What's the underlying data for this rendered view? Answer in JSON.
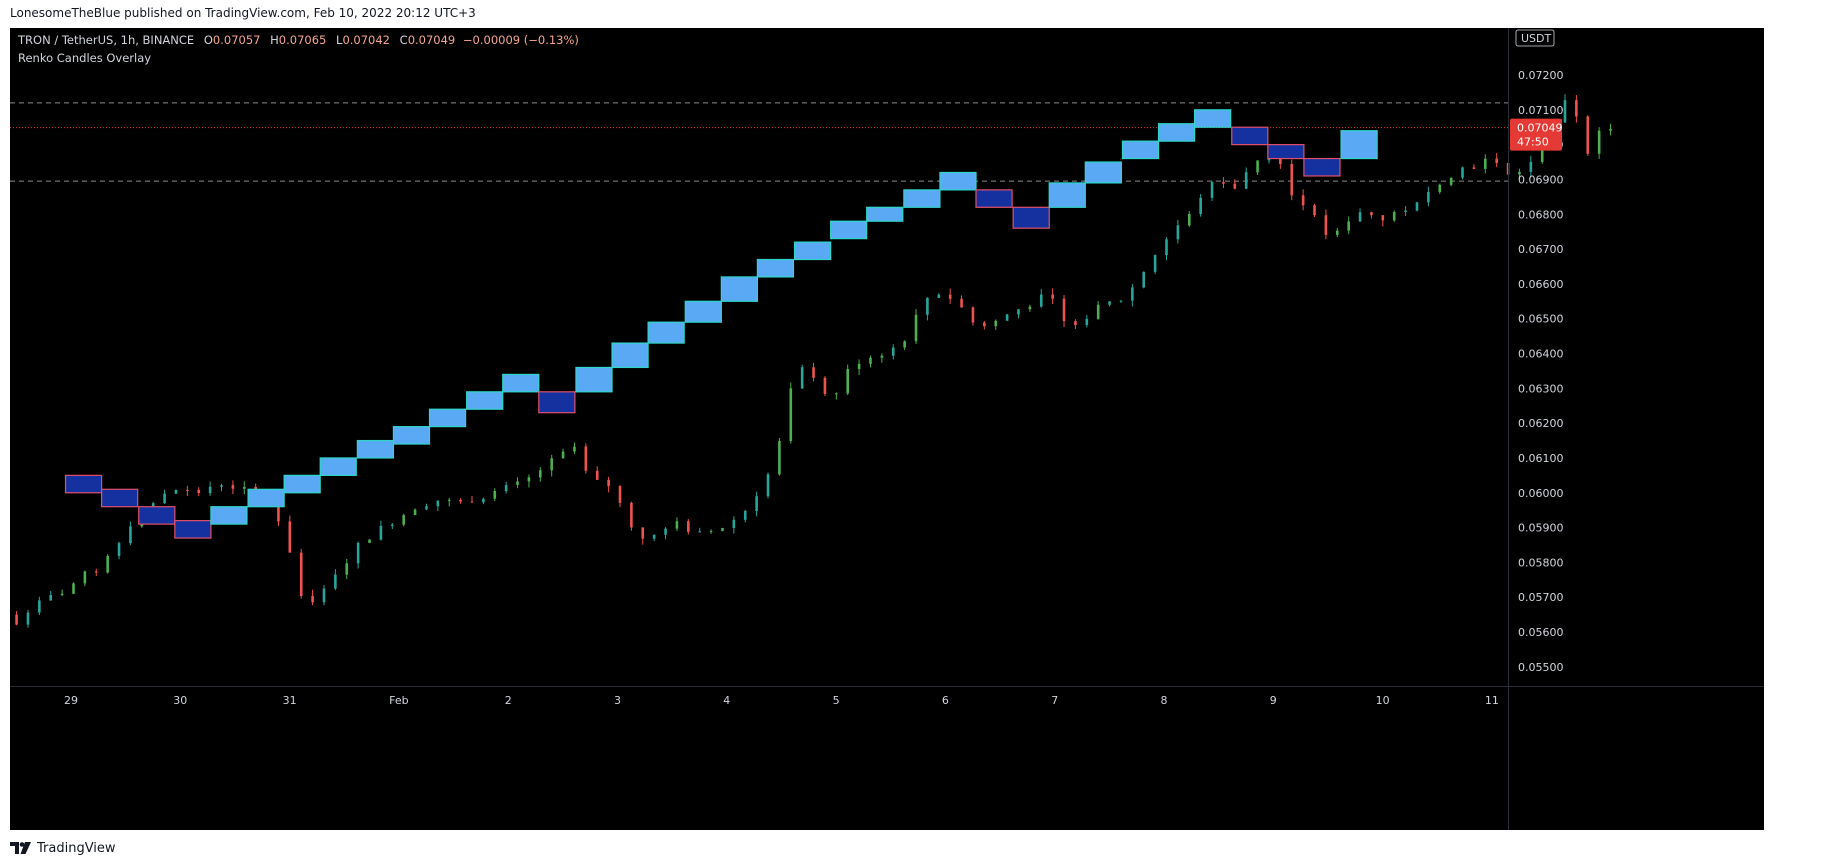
{
  "header": {
    "author": "LonesomeTheBlue",
    "published_text": "published on TradingView.com, Feb 10, 2022 20:12 UTC+3"
  },
  "legend": {
    "symbol": "TRON / TetherUS, 1h, BINANCE",
    "open_label": "O",
    "open": "0.07057",
    "high_label": "H",
    "high": "0.07065",
    "low_label": "L",
    "low": "0.07042",
    "close_label": "C",
    "close": "0.07049",
    "change": "−0.00009 (−0.13%)",
    "indicator": "Renko Candles Overlay"
  },
  "footer": {
    "brand": "TradingView"
  },
  "colors": {
    "background": "#000000",
    "candle_up": "#26a69a",
    "candle_up_alt": "#4caf50",
    "candle_down": "#ef5350",
    "renko_up_fill": "#5aa9f5",
    "renko_up_border": "#2fd6c8",
    "renko_down_fill": "#14319f",
    "renko_down_border": "#e0506a",
    "price_line": "#e53935",
    "grid_dash": "#8a8a8a"
  },
  "chart_data": {
    "type": "candlestick+renko",
    "currency": "USDT",
    "y_range": [
      0.05445,
      0.07335
    ],
    "y_ticks": [
      "0.05500",
      "0.05600",
      "0.05700",
      "0.05800",
      "0.05900",
      "0.06000",
      "0.06100",
      "0.06200",
      "0.06300",
      "0.06400",
      "0.06500",
      "0.06600",
      "0.06700",
      "0.06800",
      "0.06900",
      "0.07000",
      "0.07100",
      "0.07200"
    ],
    "x_ticks": [
      {
        "label": "29",
        "day": 0
      },
      {
        "label": "30",
        "day": 1
      },
      {
        "label": "31",
        "day": 2
      },
      {
        "label": "Feb",
        "day": 3
      },
      {
        "label": "2",
        "day": 4
      },
      {
        "label": "3",
        "day": 5
      },
      {
        "label": "4",
        "day": 6
      },
      {
        "label": "5",
        "day": 7
      },
      {
        "label": "6",
        "day": 8
      },
      {
        "label": "7",
        "day": 9
      },
      {
        "label": "8",
        "day": 10
      },
      {
        "label": "9",
        "day": 11
      },
      {
        "label": "10",
        "day": 12
      },
      {
        "label": "11",
        "day": 13
      }
    ],
    "last_price": "0.07049",
    "countdown": "47:50",
    "price_path": [
      [
        -0.55,
        0.0565
      ],
      [
        -0.45,
        0.0562
      ],
      [
        -0.35,
        0.0566
      ],
      [
        -0.2,
        0.0569
      ],
      [
        0,
        0.0572
      ],
      [
        0.15,
        0.0576
      ],
      [
        0.3,
        0.0578
      ],
      [
        0.5,
        0.0586
      ],
      [
        0.65,
        0.0594
      ],
      [
        0.8,
        0.0597
      ],
      [
        1.0,
        0.0601
      ],
      [
        1.2,
        0.06
      ],
      [
        1.4,
        0.0603
      ],
      [
        1.6,
        0.0601
      ],
      [
        1.8,
        0.0599
      ],
      [
        1.95,
        0.0592
      ],
      [
        2.05,
        0.0584
      ],
      [
        2.13,
        0.0571
      ],
      [
        2.3,
        0.0569
      ],
      [
        2.5,
        0.0577
      ],
      [
        2.65,
        0.0584
      ],
      [
        2.8,
        0.0588
      ],
      [
        3.0,
        0.0592
      ],
      [
        3.2,
        0.0596
      ],
      [
        3.4,
        0.0598
      ],
      [
        3.6,
        0.0597
      ],
      [
        3.8,
        0.0599
      ],
      [
        4.0,
        0.0601
      ],
      [
        4.2,
        0.0603
      ],
      [
        4.4,
        0.0608
      ],
      [
        4.55,
        0.0611
      ],
      [
        4.65,
        0.0614
      ],
      [
        4.72,
        0.0607
      ],
      [
        4.85,
        0.0603
      ],
      [
        5.0,
        0.0602
      ],
      [
        5.1,
        0.0595
      ],
      [
        5.25,
        0.0587
      ],
      [
        5.4,
        0.0588
      ],
      [
        5.6,
        0.0591
      ],
      [
        5.8,
        0.0588
      ],
      [
        6.0,
        0.059
      ],
      [
        6.2,
        0.0594
      ],
      [
        6.35,
        0.0601
      ],
      [
        6.5,
        0.0609
      ],
      [
        6.6,
        0.0625
      ],
      [
        6.7,
        0.0636
      ],
      [
        6.9,
        0.0633
      ],
      [
        6.98,
        0.0624
      ],
      [
        7.1,
        0.0632
      ],
      [
        7.2,
        0.0637
      ],
      [
        7.35,
        0.0639
      ],
      [
        7.55,
        0.0641
      ],
      [
        7.7,
        0.0645
      ],
      [
        7.85,
        0.0655
      ],
      [
        7.95,
        0.0658
      ],
      [
        8.1,
        0.0656
      ],
      [
        8.2,
        0.0653
      ],
      [
        8.3,
        0.0649
      ],
      [
        8.45,
        0.0648
      ],
      [
        8.6,
        0.0651
      ],
      [
        8.8,
        0.0654
      ],
      [
        9.0,
        0.0657
      ],
      [
        9.15,
        0.0648
      ],
      [
        9.3,
        0.065
      ],
      [
        9.5,
        0.0654
      ],
      [
        9.7,
        0.0656
      ],
      [
        9.85,
        0.0663
      ],
      [
        10.0,
        0.067
      ],
      [
        10.15,
        0.0676
      ],
      [
        10.3,
        0.068
      ],
      [
        10.4,
        0.0686
      ],
      [
        10.55,
        0.069
      ],
      [
        10.7,
        0.0688
      ],
      [
        10.85,
        0.0694
      ],
      [
        11.0,
        0.0699
      ],
      [
        11.1,
        0.0696
      ],
      [
        11.2,
        0.0686
      ],
      [
        11.35,
        0.0683
      ],
      [
        11.5,
        0.0675
      ],
      [
        11.6,
        0.0673
      ],
      [
        11.75,
        0.0679
      ],
      [
        11.9,
        0.0682
      ],
      [
        12.0,
        0.0678
      ],
      [
        12.2,
        0.0681
      ],
      [
        12.4,
        0.0683
      ],
      [
        12.55,
        0.0689
      ],
      [
        12.75,
        0.0693
      ],
      [
        12.9,
        0.0694
      ],
      [
        13.05,
        0.0697
      ],
      [
        13.2,
        0.0691
      ],
      [
        13.4,
        0.0694
      ],
      [
        13.55,
        0.0702
      ],
      [
        13.65,
        0.0709
      ],
      [
        13.75,
        0.0713
      ],
      [
        13.85,
        0.0707
      ],
      [
        13.92,
        0.0696
      ],
      [
        14.0,
        0.0703
      ],
      [
        14.12,
        0.0705
      ]
    ],
    "renko_bricks": [
      {
        "d": -0.05,
        "dir": "down",
        "lo": 0.06,
        "hi": 0.0605
      },
      {
        "d": 0.28,
        "dir": "down",
        "lo": 0.0596,
        "hi": 0.0601
      },
      {
        "d": 0.62,
        "dir": "down",
        "lo": 0.0591,
        "hi": 0.0596
      },
      {
        "d": 0.95,
        "dir": "down",
        "lo": 0.0587,
        "hi": 0.0592
      },
      {
        "d": 1.28,
        "dir": "up",
        "lo": 0.0591,
        "hi": 0.0596
      },
      {
        "d": 1.62,
        "dir": "up",
        "lo": 0.0596,
        "hi": 0.0601
      },
      {
        "d": 1.95,
        "dir": "up",
        "lo": 0.06,
        "hi": 0.0605
      },
      {
        "d": 2.28,
        "dir": "up",
        "lo": 0.0605,
        "hi": 0.061
      },
      {
        "d": 2.62,
        "dir": "up",
        "lo": 0.061,
        "hi": 0.0615
      },
      {
        "d": 2.95,
        "dir": "up",
        "lo": 0.0614,
        "hi": 0.0619
      },
      {
        "d": 3.28,
        "dir": "up",
        "lo": 0.0619,
        "hi": 0.0624
      },
      {
        "d": 3.62,
        "dir": "up",
        "lo": 0.0624,
        "hi": 0.0629
      },
      {
        "d": 3.95,
        "dir": "up",
        "lo": 0.0629,
        "hi": 0.0634
      },
      {
        "d": 4.28,
        "dir": "down",
        "lo": 0.0623,
        "hi": 0.0629
      },
      {
        "d": 4.62,
        "dir": "up",
        "lo": 0.0629,
        "hi": 0.0636
      },
      {
        "d": 4.95,
        "dir": "up",
        "lo": 0.0636,
        "hi": 0.0643
      },
      {
        "d": 5.28,
        "dir": "up",
        "lo": 0.0643,
        "hi": 0.0649
      },
      {
        "d": 5.62,
        "dir": "up",
        "lo": 0.0649,
        "hi": 0.0655
      },
      {
        "d": 5.95,
        "dir": "up",
        "lo": 0.0655,
        "hi": 0.0662
      },
      {
        "d": 6.28,
        "dir": "up",
        "lo": 0.0662,
        "hi": 0.0667
      },
      {
        "d": 6.62,
        "dir": "up",
        "lo": 0.0667,
        "hi": 0.0672
      },
      {
        "d": 6.95,
        "dir": "up",
        "lo": 0.0673,
        "hi": 0.0678
      },
      {
        "d": 7.28,
        "dir": "up",
        "lo": 0.0678,
        "hi": 0.0682
      },
      {
        "d": 7.62,
        "dir": "up",
        "lo": 0.0682,
        "hi": 0.0687
      },
      {
        "d": 7.95,
        "dir": "up",
        "lo": 0.0687,
        "hi": 0.0692
      },
      {
        "d": 8.28,
        "dir": "down",
        "lo": 0.0682,
        "hi": 0.0687
      },
      {
        "d": 8.62,
        "dir": "down",
        "lo": 0.0676,
        "hi": 0.0682
      },
      {
        "d": 8.95,
        "dir": "up",
        "lo": 0.0682,
        "hi": 0.0689
      },
      {
        "d": 9.28,
        "dir": "up",
        "lo": 0.0689,
        "hi": 0.0695
      },
      {
        "d": 9.62,
        "dir": "up",
        "lo": 0.0696,
        "hi": 0.0701
      },
      {
        "d": 9.95,
        "dir": "up",
        "lo": 0.0701,
        "hi": 0.0706
      },
      {
        "d": 10.28,
        "dir": "up",
        "lo": 0.0705,
        "hi": 0.071
      },
      {
        "d": 10.62,
        "dir": "down",
        "lo": 0.07,
        "hi": 0.0705
      },
      {
        "d": 10.95,
        "dir": "down",
        "lo": 0.0696,
        "hi": 0.07
      },
      {
        "d": 11.28,
        "dir": "down",
        "lo": 0.0691,
        "hi": 0.0696
      },
      {
        "d": 11.62,
        "dir": "up",
        "lo": 0.0696,
        "hi": 0.0704
      }
    ],
    "horizontal_lines": [
      0.0712,
      0.06895
    ]
  }
}
